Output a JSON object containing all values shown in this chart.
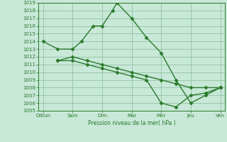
{
  "xlabel": "Pression niveau de la mer( hPa )",
  "x_labels": [
    "Ditlun",
    "Sam",
    "Dim",
    "Mar",
    "Mer",
    "Jeu",
    "Ven"
  ],
  "x_ticks": [
    0,
    1,
    2,
    3,
    4,
    5,
    6
  ],
  "ylim": [
    1005,
    1019
  ],
  "yticks": [
    1005,
    1006,
    1007,
    1008,
    1009,
    1010,
    1011,
    1012,
    1013,
    1014,
    1015,
    1016,
    1017,
    1018,
    1019
  ],
  "line1_x": [
    0,
    0.5,
    1.0,
    1.3,
    1.7,
    2.0,
    2.35,
    2.5,
    3.0,
    3.5,
    4.0,
    4.5,
    5.0,
    5.5,
    6.0
  ],
  "line1_y": [
    1014,
    1013,
    1013,
    1014,
    1016,
    1016,
    1018,
    1019,
    1017,
    1014.5,
    1012.5,
    1009,
    1006,
    1007,
    1008
  ],
  "line2_x": [
    0.5,
    1.0,
    1.5,
    2.0,
    2.5,
    3.0,
    3.5,
    4.0,
    4.5,
    5.0,
    5.5,
    6.0
  ],
  "line2_y": [
    1011.5,
    1012,
    1011.5,
    1011,
    1010.5,
    1010,
    1009.5,
    1009,
    1008.5,
    1008,
    1008,
    1008
  ],
  "line3_x": [
    0.5,
    1.0,
    1.5,
    2.0,
    2.5,
    3.0,
    3.5,
    4.0,
    4.5,
    5.0,
    5.5,
    6.0
  ],
  "line3_y": [
    1011.5,
    1011.5,
    1011,
    1010.5,
    1010,
    1009.5,
    1009,
    1006,
    1005.5,
    1007,
    1007.3,
    1008
  ],
  "line_color": "#2a7a2a",
  "marker": "D",
  "markersize": 2.5,
  "linewidth": 1.0,
  "background_color": "#c8e8d8",
  "grid_color": "#88bb99",
  "text_color": "#2a7a2a",
  "spine_color": "#2a7a2a"
}
